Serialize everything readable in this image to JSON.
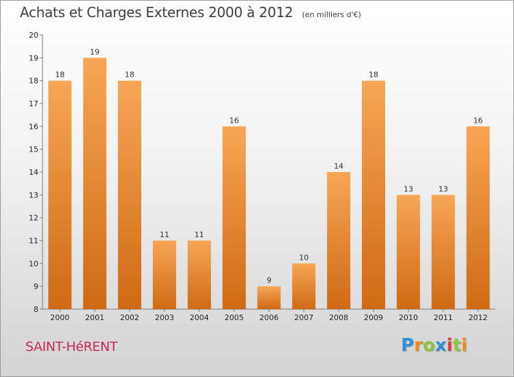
{
  "chart_data": {
    "type": "bar",
    "title": "Achats et Charges Externes 2000 à 2012",
    "unit_note": "(en milliers d'€)",
    "categories": [
      "2000",
      "2001",
      "2002",
      "2003",
      "2004",
      "2005",
      "2006",
      "2007",
      "2008",
      "2009",
      "2010",
      "2011",
      "2012"
    ],
    "values": [
      18,
      19,
      18,
      11,
      11,
      16,
      9,
      10,
      14,
      18,
      13,
      13,
      16
    ],
    "ylim": [
      8,
      20
    ],
    "yticks": [
      8,
      9,
      10,
      11,
      12,
      13,
      14,
      15,
      16,
      17,
      18,
      19,
      20
    ],
    "grid": false,
    "legend": "none",
    "bar_color_top": "#f7a655",
    "bar_color_bottom": "#cf6a14"
  },
  "footer": {
    "commune": "SAINT-HéRENT",
    "brand": {
      "letters": [
        "P",
        "r",
        "o",
        "x",
        "i",
        "t",
        "i"
      ],
      "colors": [
        "#2f8fd6",
        "#f08a1c",
        "#8cc63e",
        "#2f8fd6",
        "#e33d3d",
        "#8cc63e",
        "#f08a1c"
      ]
    }
  }
}
